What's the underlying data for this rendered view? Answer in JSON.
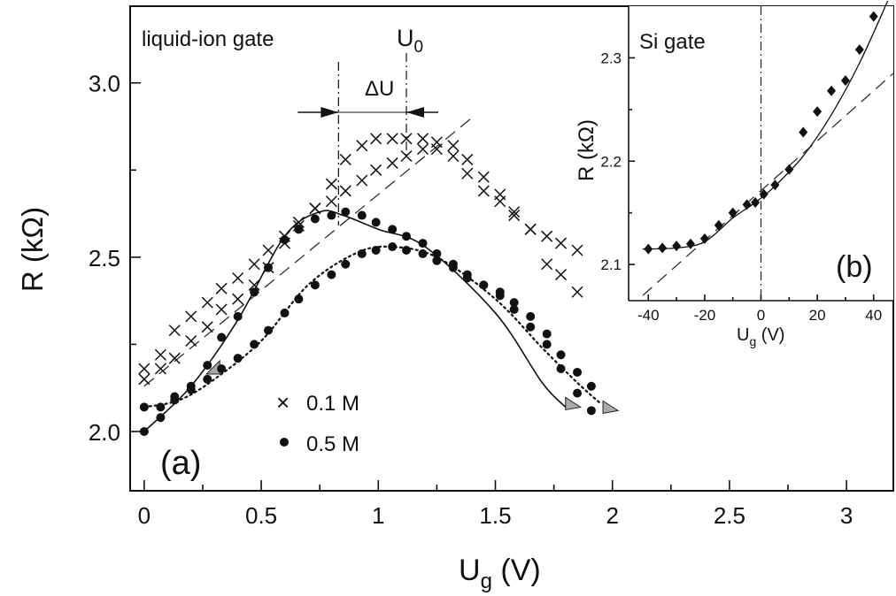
{
  "chart_data": [
    {
      "panel": "(a)",
      "type": "scatter",
      "annotation": "liquid-ion gate",
      "xlabel_main": "U",
      "xlabel_sub": "g",
      "xlabel_unit": " (V)",
      "ylabel": "R (kΩ)",
      "xlim": [
        -0.06,
        3.2
      ],
      "ylim": [
        1.83,
        3.22
      ],
      "xticks": [
        0,
        0.5,
        1,
        1.5,
        2,
        2.5,
        3
      ],
      "xtick_labels": [
        "0",
        "0.5",
        "1",
        "1.5",
        "2",
        "2.5",
        "3"
      ],
      "yticks": [
        2.0,
        2.5,
        3.0
      ],
      "ytick_labels": [
        "2.0",
        "2.5",
        "3.0"
      ],
      "u0_label_main": "U",
      "u0_label_sub": "0",
      "delta_u_label": "ΔU",
      "u0_x": 1.12,
      "peak_x": 0.83,
      "series": [
        {
          "name": "0.1 M",
          "marker": "x",
          "x": [
            0.0,
            0.07,
            0.13,
            0.2,
            0.27,
            0.33,
            0.4,
            0.47,
            0.53,
            0.6,
            0.66,
            0.73,
            0.8,
            0.86,
            0.93,
            0.99,
            1.06,
            1.12,
            1.19,
            1.25,
            1.32,
            1.38,
            1.45,
            1.52,
            1.58,
            1.65,
            1.72,
            1.78,
            1.85,
            0.0,
            0.07,
            0.13,
            0.2,
            0.27,
            0.33,
            0.4,
            0.47,
            0.53,
            0.6,
            0.66,
            0.73,
            0.8,
            0.86,
            0.93,
            0.99,
            1.06,
            1.12,
            1.19,
            1.25,
            1.32,
            1.38,
            1.45,
            1.52,
            1.58,
            1.65,
            1.72,
            1.78,
            1.85
          ],
          "y": [
            2.18,
            2.22,
            2.29,
            2.33,
            2.37,
            2.41,
            2.44,
            2.48,
            2.52,
            2.56,
            2.6,
            2.64,
            2.71,
            2.78,
            2.82,
            2.84,
            2.84,
            2.84,
            2.84,
            2.83,
            2.82,
            2.78,
            2.73,
            2.68,
            2.62,
            2.58,
            2.56,
            2.54,
            2.52,
            2.15,
            2.18,
            2.21,
            2.26,
            2.3,
            2.35,
            2.38,
            2.42,
            2.47,
            2.54,
            2.59,
            2.64,
            2.66,
            2.69,
            2.72,
            2.75,
            2.77,
            2.79,
            2.81,
            2.81,
            2.79,
            2.74,
            2.69,
            2.66,
            2.63,
            2.58,
            2.48,
            2.45,
            2.4
          ]
        },
        {
          "name": "0.5 M",
          "marker": "circle",
          "x": [
            0.0,
            0.07,
            0.13,
            0.2,
            0.27,
            0.33,
            0.4,
            0.47,
            0.53,
            0.6,
            0.66,
            0.73,
            0.8,
            0.86,
            0.93,
            0.99,
            1.06,
            1.12,
            1.19,
            1.25,
            1.32,
            1.38,
            1.45,
            1.52,
            1.58,
            1.65,
            1.72,
            1.78,
            1.85,
            1.91,
            0.0,
            0.07,
            0.13,
            0.2,
            0.27,
            0.33,
            0.4,
            0.47,
            0.53,
            0.6,
            0.66,
            0.73,
            0.8,
            0.86,
            0.93,
            0.99,
            1.06,
            1.12,
            1.19,
            1.25,
            1.32,
            1.38,
            1.45,
            1.52,
            1.58,
            1.65,
            1.72,
            1.78,
            1.85,
            1.91
          ],
          "y": [
            2.0,
            2.04,
            2.1,
            2.13,
            2.19,
            2.27,
            2.33,
            2.4,
            2.47,
            2.55,
            2.58,
            2.61,
            2.62,
            2.63,
            2.62,
            2.6,
            2.58,
            2.56,
            2.54,
            2.51,
            2.48,
            2.45,
            2.42,
            2.39,
            2.35,
            2.3,
            2.25,
            2.18,
            2.11,
            2.06,
            2.07,
            2.07,
            2.09,
            2.12,
            2.15,
            2.18,
            2.21,
            2.25,
            2.29,
            2.34,
            2.38,
            2.42,
            2.45,
            2.48,
            2.51,
            2.52,
            2.53,
            2.52,
            2.51,
            2.49,
            2.47,
            2.44,
            2.42,
            2.4,
            2.37,
            2.33,
            2.28,
            2.22,
            2.17,
            2.13
          ]
        }
      ],
      "fit_solid": {
        "x": [
          0,
          0.2,
          0.4,
          0.6,
          0.75,
          0.85,
          1.0,
          1.2,
          1.5,
          1.7,
          1.8
        ],
        "y": [
          2.0,
          2.13,
          2.32,
          2.56,
          2.63,
          2.62,
          2.58,
          2.53,
          2.34,
          2.14,
          2.07
        ]
      },
      "fit_dotted": {
        "x": [
          0,
          0.15,
          0.3,
          0.5,
          0.7,
          0.9,
          1.05,
          1.25,
          1.5,
          1.7,
          1.85,
          1.95
        ],
        "y": [
          2.07,
          2.09,
          2.15,
          2.26,
          2.42,
          2.51,
          2.53,
          2.5,
          2.38,
          2.24,
          2.14,
          2.08
        ]
      },
      "reference_dashed": {
        "x": [
          0,
          1.4
        ],
        "y": [
          2.13,
          2.9
        ]
      }
    },
    {
      "panel": "(b)",
      "type": "scatter",
      "annotation": "Si gate",
      "xlabel_main": "U",
      "xlabel_sub": "g",
      "xlabel_unit": " (V)",
      "ylabel": "R (kΩ)",
      "xlim": [
        -47,
        47
      ],
      "ylim": [
        2.065,
        2.35
      ],
      "xticks": [
        -40,
        -20,
        0,
        20,
        40
      ],
      "xtick_labels": [
        "-40",
        "-20",
        "0",
        "20",
        "40"
      ],
      "yticks": [
        2.1,
        2.2,
        2.3
      ],
      "ytick_labels": [
        "2.1",
        "2.2",
        "2.3"
      ],
      "series": [
        {
          "name": "Si gate",
          "marker": "diamond",
          "x": [
            -40,
            -35,
            -30,
            -25,
            -20,
            -15,
            -10,
            -5,
            -2,
            1,
            5,
            10,
            15,
            20,
            25,
            30,
            35,
            40
          ],
          "y": [
            2.115,
            2.116,
            2.118,
            2.12,
            2.125,
            2.138,
            2.15,
            2.158,
            2.16,
            2.168,
            2.177,
            2.192,
            2.228,
            2.248,
            2.268,
            2.278,
            2.308,
            2.34
          ]
        }
      ],
      "fit": {
        "x": [
          -42,
          -30,
          -20,
          -10,
          -2,
          5,
          15,
          25,
          35,
          45
        ],
        "y": [
          2.115,
          2.116,
          2.122,
          2.145,
          2.16,
          2.176,
          2.205,
          2.245,
          2.295,
          2.355
        ]
      },
      "reference_dashed": {
        "x": [
          -42,
          47
        ],
        "y": [
          2.07,
          2.285
        ]
      }
    }
  ],
  "legend": [
    {
      "symbol": "×",
      "label": "0.1 M"
    },
    {
      "symbol": "●",
      "label": "0.5 M"
    }
  ],
  "panel_labels": {
    "a": "(a)",
    "b": "(b)"
  }
}
